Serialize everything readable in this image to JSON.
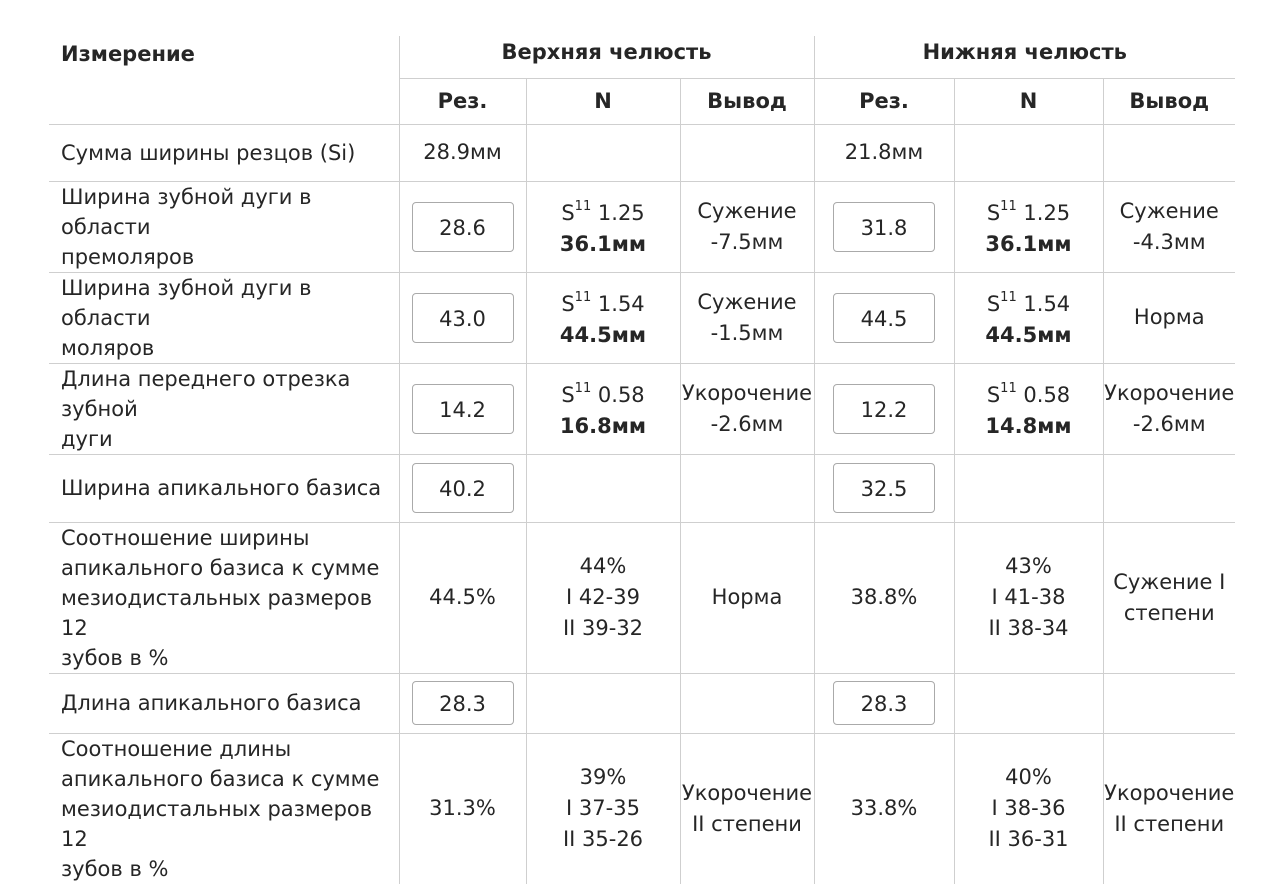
{
  "header": {
    "measure_label": "Измерение",
    "upper_label": "Верхняя челюсть",
    "lower_label": "Нижняя челюсть",
    "col_res": "Рез.",
    "col_n": "N",
    "col_conclusion": "Вывод"
  },
  "rows": [
    {
      "label": "Сумма ширины резцов (Si)",
      "upper": {
        "res": "28.9мм",
        "n_lines": [],
        "conclusion": []
      },
      "lower": {
        "res": "21.8мм",
        "n_lines": [],
        "conclusion": []
      }
    },
    {
      "label_lines": [
        "Ширина зубной дуги в области",
        "премоляров"
      ],
      "upper": {
        "res": "28.6",
        "n_s": "S",
        "n_sup": "11",
        "n_coef": "1.25",
        "n_value": "36.1мм",
        "conclusion": [
          "Сужение",
          "-7.5мм"
        ]
      },
      "lower": {
        "res": "31.8",
        "n_s": "S",
        "n_sup": "11",
        "n_coef": "1.25",
        "n_value": "36.1мм",
        "conclusion": [
          "Сужение",
          "-4.3мм"
        ]
      }
    },
    {
      "label_lines": [
        "Ширина зубной дуги в области",
        "моляров"
      ],
      "upper": {
        "res": "43.0",
        "n_s": "S",
        "n_sup": "11",
        "n_coef": "1.54",
        "n_value": "44.5мм",
        "conclusion": [
          "Сужение",
          "-1.5мм"
        ]
      },
      "lower": {
        "res": "44.5",
        "n_s": "S",
        "n_sup": "11",
        "n_coef": "1.54",
        "n_value": "44.5мм",
        "conclusion": [
          "Норма"
        ]
      }
    },
    {
      "label_lines": [
        "Длина переднего отрезка зубной",
        "дуги"
      ],
      "upper": {
        "res": "14.2",
        "n_s": "S",
        "n_sup": "11",
        "n_coef": "0.58",
        "n_value": "16.8мм",
        "conclusion": [
          "Укорочение",
          "-2.6мм"
        ]
      },
      "lower": {
        "res": "12.2",
        "n_s": "S",
        "n_sup": "11",
        "n_coef": "0.58",
        "n_value": "14.8мм",
        "conclusion": [
          "Укорочение",
          "-2.6мм"
        ]
      }
    },
    {
      "label": "Ширина апикального базиса",
      "upper": {
        "res": "40.2"
      },
      "lower": {
        "res": "32.5"
      }
    },
    {
      "label_lines": [
        "Соотношение ширины",
        "апикального базиса к сумме",
        "мезиодистальных размеров 12",
        "зубов в %"
      ],
      "upper": {
        "res": "44.5%",
        "n_lines": [
          "44%",
          "I 42-39",
          "II 39-32"
        ],
        "conclusion": [
          "Норма"
        ]
      },
      "lower": {
        "res": "38.8%",
        "n_lines": [
          "43%",
          "I 41-38",
          "II 38-34"
        ],
        "conclusion": [
          "Сужение I",
          "степени"
        ]
      }
    },
    {
      "label": "Длина апикального базиса",
      "upper": {
        "res": "28.3"
      },
      "lower": {
        "res": "28.3"
      }
    },
    {
      "label_lines": [
        "Соотношение длины",
        "апикального базиса к сумме",
        "мезиодистальных размеров 12",
        "зубов в %"
      ],
      "upper": {
        "res": "31.3%",
        "n_lines": [
          "39%",
          "I 37-35",
          "II 35-26"
        ],
        "conclusion": [
          "Укорочение",
          "II степени"
        ]
      },
      "lower": {
        "res": "33.8%",
        "n_lines": [
          "40%",
          "I 38-36",
          "II 36-31"
        ],
        "conclusion": [
          "Укорочение",
          "II степени"
        ]
      }
    }
  ]
}
